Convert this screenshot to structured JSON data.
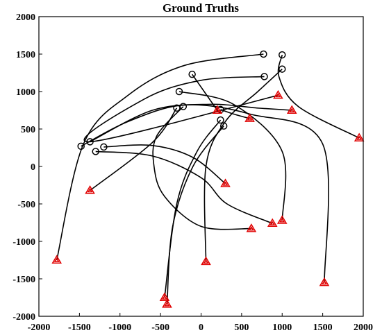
{
  "chart_data": {
    "type": "line",
    "title": "Ground Truths",
    "xlabel": "",
    "ylabel": "",
    "xlim": [
      -2000,
      2000
    ],
    "ylim": [
      -2000,
      2000
    ],
    "xticks": [
      -2000,
      -1500,
      -1000,
      -500,
      0,
      500,
      1000,
      1500,
      2000
    ],
    "yticks": [
      -2000,
      -1500,
      -1000,
      -500,
      0,
      500,
      1000,
      1500,
      2000
    ],
    "grid": false,
    "legend": "none",
    "colors": {
      "track": "#000000",
      "start_marker": "#000000",
      "end_marker": "#e00000"
    },
    "markers": {
      "start": "circle",
      "end": "triangle"
    },
    "series": [
      {
        "points": [
          [
            770,
            1500
          ],
          [
            -200,
            1350
          ],
          [
            -900,
            950
          ],
          [
            -1450,
            300
          ],
          [
            -1780,
            -1250
          ]
        ]
      },
      {
        "points": [
          [
            780,
            1200
          ],
          [
            0,
            1150
          ],
          [
            -700,
            900
          ],
          [
            -1380,
            330
          ],
          [
            950,
            950
          ]
        ]
      },
      {
        "points": [
          [
            -1370,
            330
          ],
          [
            -600,
            750
          ],
          [
            100,
            830
          ],
          [
            700,
            780
          ],
          [
            1120,
            750
          ]
        ]
      },
      {
        "points": [
          [
            -1480,
            270
          ],
          [
            -900,
            600
          ],
          [
            -200,
            820
          ],
          [
            600,
            700
          ],
          [
            1500,
            300
          ],
          [
            1520,
            -1550
          ]
        ]
      },
      {
        "points": [
          [
            -1200,
            260
          ],
          [
            -600,
            280
          ],
          [
            -100,
            120
          ],
          [
            300,
            -230
          ]
        ]
      },
      {
        "points": [
          [
            -1300,
            200
          ],
          [
            -600,
            140
          ],
          [
            0,
            -150
          ],
          [
            320,
            -500
          ],
          [
            880,
            -760
          ]
        ]
      },
      {
        "points": [
          [
            -270,
            1000
          ],
          [
            400,
            830
          ],
          [
            1000,
            200
          ],
          [
            1000,
            -720
          ]
        ]
      },
      {
        "points": [
          [
            -110,
            1230
          ],
          [
            200,
            750
          ]
        ]
      },
      {
        "points": [
          [
            240,
            760
          ],
          [
            400,
            700
          ],
          [
            600,
            640
          ]
        ]
      },
      {
        "points": [
          [
            -300,
            780
          ],
          [
            -600,
            320
          ],
          [
            -1370,
            -320
          ]
        ]
      },
      {
        "points": [
          [
            -220,
            800
          ],
          [
            -550,
            400
          ],
          [
            -580,
            0
          ],
          [
            -450,
            -400
          ],
          [
            0,
            -800
          ],
          [
            620,
            -830
          ]
        ]
      },
      {
        "points": [
          [
            1000,
            1490
          ],
          [
            960,
            1200
          ],
          [
            1200,
            800
          ],
          [
            1950,
            380
          ]
        ]
      },
      {
        "points": [
          [
            1000,
            1300
          ],
          [
            700,
            1000
          ],
          [
            300,
            600
          ],
          [
            60,
            0
          ],
          [
            60,
            -1270
          ]
        ]
      },
      {
        "points": [
          [
            240,
            620
          ],
          [
            -50,
            200
          ],
          [
            -300,
            -500
          ],
          [
            -450,
            -1750
          ]
        ]
      },
      {
        "points": [
          [
            280,
            540
          ],
          [
            -100,
            0
          ],
          [
            -350,
            -800
          ],
          [
            -420,
            -1840
          ]
        ]
      }
    ]
  }
}
